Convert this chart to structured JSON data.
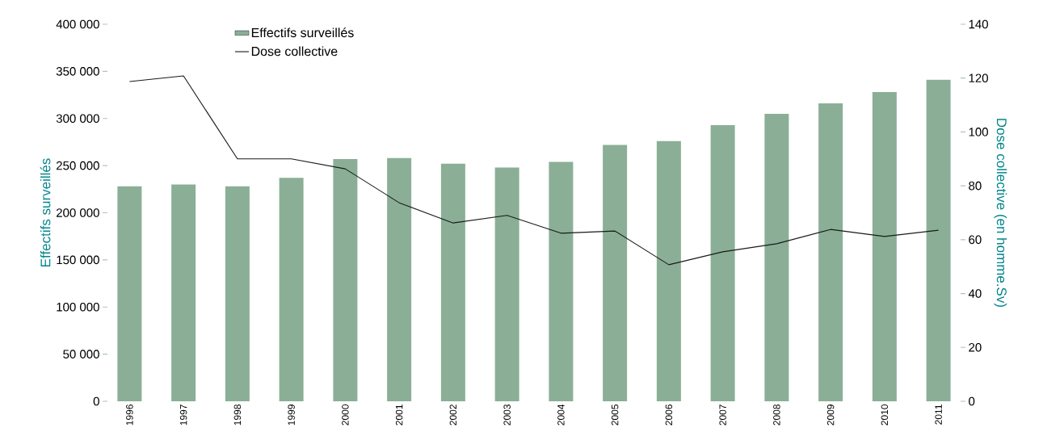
{
  "chart_data": {
    "type": "bar",
    "categories": [
      "1996",
      "1997",
      "1998",
      "1999",
      "2000",
      "2001",
      "2002",
      "2003",
      "2004",
      "2005",
      "2006",
      "2007",
      "2008",
      "2009",
      "2010",
      "2011"
    ],
    "series": [
      {
        "name": "Effectifs surveillés",
        "color": "#8aaf96",
        "values": [
          228000,
          230000,
          228000,
          237000,
          257000,
          258000,
          252000,
          248000,
          254000,
          272000,
          276000,
          293000,
          305000,
          316000,
          328000,
          341000
        ]
      },
      {
        "name": "Dose collective",
        "type": "line",
        "axis": "y2",
        "color": "#1a1a1a",
        "values": [
          118.7,
          120.8,
          90,
          90,
          86.3,
          73.7,
          66.2,
          69,
          62.4,
          63.2,
          50.7,
          55.5,
          58.5,
          63.8,
          61.2,
          63.5
        ]
      }
    ],
    "ylabel": "Effectifs surveillés",
    "y2label": "Dose collective (en homme.Sv)",
    "ylim": [
      0,
      400000
    ],
    "yticks": [
      0,
      {
        "value": 50000,
        "label": "50 000"
      },
      {
        "value": 100000,
        "label": "100 000"
      },
      {
        "value": 150000,
        "label": "150 000"
      },
      {
        "value": 200000,
        "label": "200 000"
      },
      {
        "value": 250000,
        "label": "250 000"
      },
      {
        "value": 300000,
        "label": "300 000"
      },
      {
        "value": 350000,
        "label": "350 000"
      },
      {
        "value": 400000,
        "label": "400 000"
      }
    ],
    "y2lim": [
      0,
      140
    ],
    "y2ticks": [
      0,
      20,
      40,
      60,
      80,
      100,
      120,
      140
    ],
    "legend": "top left",
    "grid": false,
    "marker": "none",
    "line_style": "solid"
  }
}
